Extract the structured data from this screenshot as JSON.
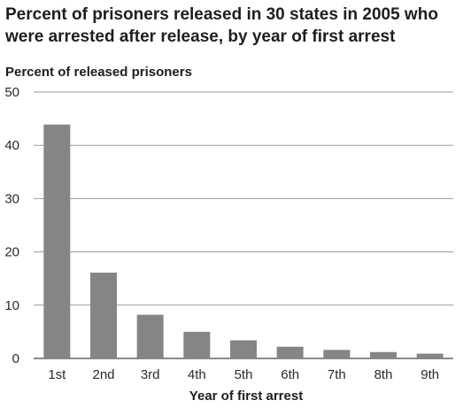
{
  "chart_data": {
    "type": "bar",
    "title": "Percent of prisoners released in 30 states in 2005 who were arrested after release, by year of first arrest",
    "title_lines": [
      "Percent of prisoners released in 30 states in 2005 who",
      "were arrested after release, by year of first arrest"
    ],
    "ylabel": "Percent of released prisoners",
    "xlabel": "Year of first arrest",
    "categories": [
      "1st",
      "2nd",
      "3rd",
      "4th",
      "5th",
      "6th",
      "7th",
      "8th",
      "9th"
    ],
    "values": [
      43.9,
      16.1,
      8.2,
      5.0,
      3.4,
      2.2,
      1.6,
      1.2,
      0.9
    ],
    "ylim": [
      0,
      50
    ],
    "yticks": [
      "0",
      "10",
      "20",
      "30",
      "40",
      "50"
    ],
    "grid": "horizontal",
    "legend": "none",
    "colors": {
      "bar": "#858585",
      "grid": "#9a9a9a",
      "text": "#1e1e1e"
    }
  }
}
